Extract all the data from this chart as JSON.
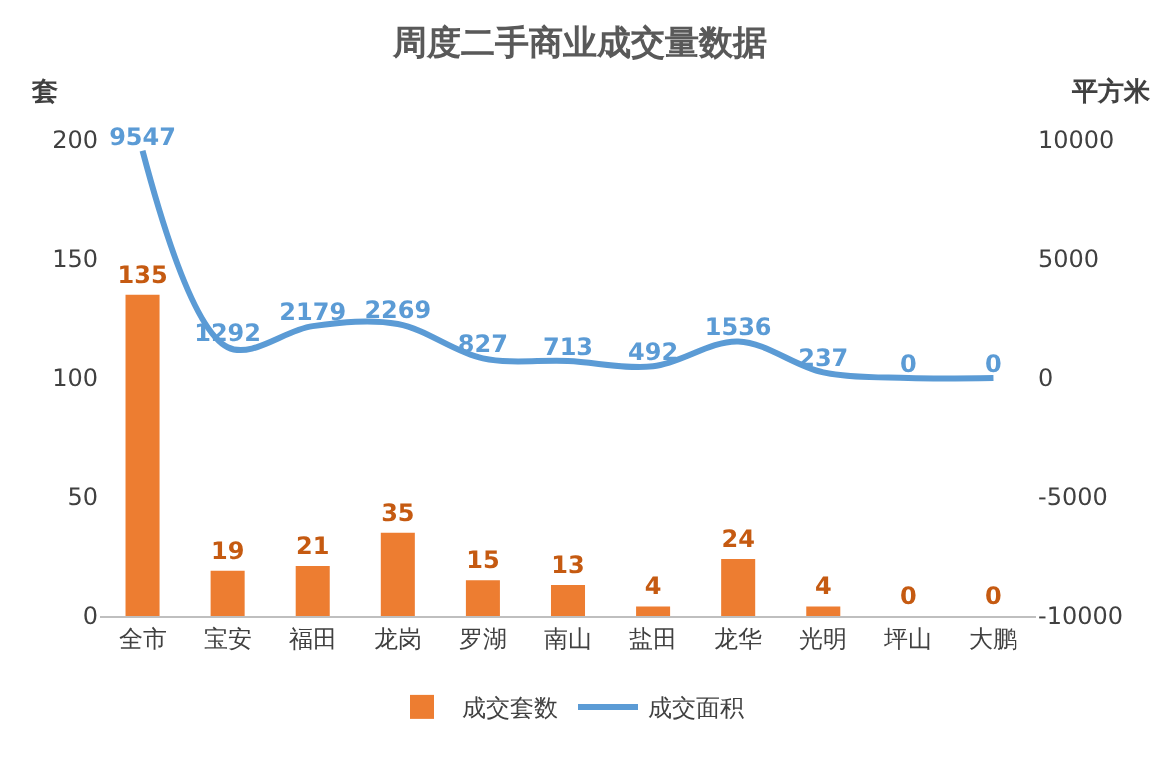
{
  "chart_data": {
    "type": "bar",
    "title": "周度二手商业成交量数据",
    "ylabel": "套",
    "y2label": "平方米",
    "categories": [
      "全市",
      "宝安",
      "福田",
      "龙岗",
      "罗湖",
      "南山",
      "盐田",
      "龙华",
      "光明",
      "坪山",
      "大鹏"
    ],
    "series": [
      {
        "name": "成交套数",
        "color": "#ed7d31",
        "values": [
          135,
          19,
          21,
          35,
          15,
          13,
          4,
          24,
          4,
          0,
          0
        ]
      },
      {
        "name": "成交面积",
        "type": "line",
        "axis": "y2",
        "color": "#5b9bd5",
        "values": [
          9547,
          1292,
          2179,
          2269,
          827,
          713,
          492,
          1536,
          237,
          0,
          0
        ]
      }
    ],
    "ylim": [
      0,
      200
    ],
    "yticks": [
      0,
      50,
      100,
      150,
      200
    ],
    "y2lim": [
      -10000,
      10000
    ],
    "y2ticks": [
      -10000,
      -5000,
      0,
      5000,
      10000
    ],
    "data_labels": true,
    "grid": false,
    "legend": "bottom",
    "marker": "none",
    "line_style": "solid"
  }
}
